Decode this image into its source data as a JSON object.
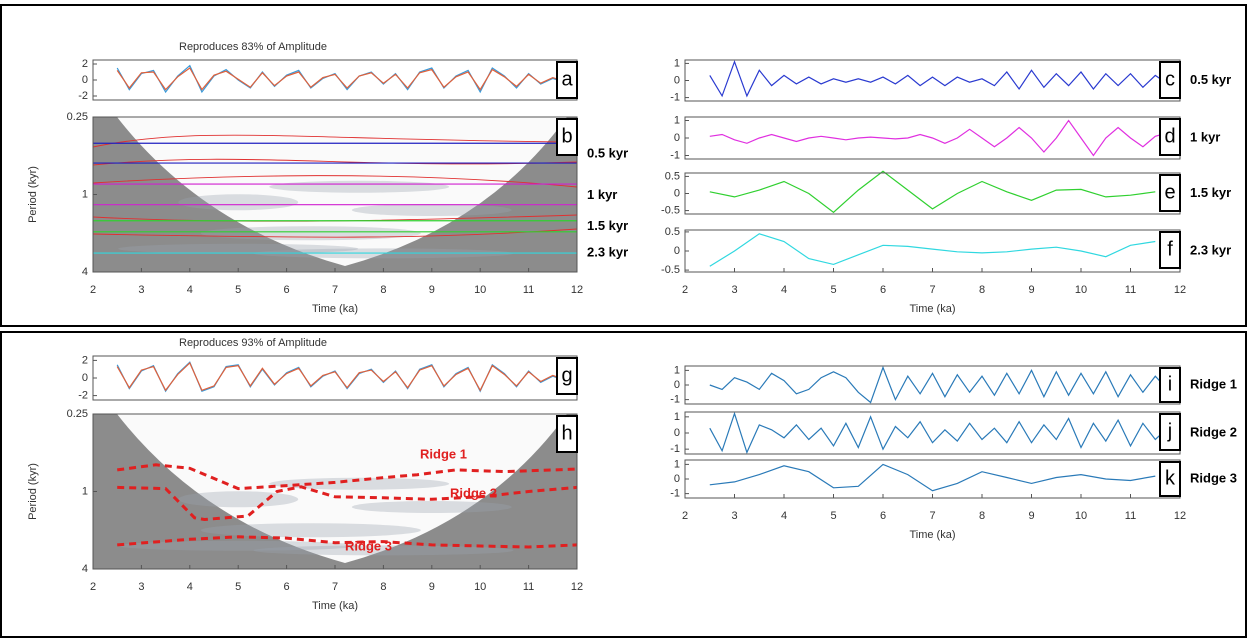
{
  "chart_data": [
    {
      "type": "line",
      "title": "Reproduces 83% of Amplitude",
      "panel_label": "a",
      "xlim": [
        2,
        12
      ],
      "ylim": [
        -2.5,
        2.5
      ],
      "yticks": [
        2,
        0,
        -2
      ],
      "x": [
        2.5,
        2.75,
        3,
        3.25,
        3.5,
        3.75,
        4,
        4.25,
        4.5,
        4.75,
        5,
        5.25,
        5.5,
        5.75,
        6,
        6.25,
        6.5,
        6.75,
        7,
        7.25,
        7.5,
        7.75,
        8,
        8.25,
        8.5,
        8.75,
        9,
        9.25,
        9.5,
        9.75,
        10,
        10.25,
        10.5,
        10.75,
        11,
        11.25,
        11.5,
        11.75
      ],
      "series": [
        {
          "color": "#3a9ad9",
          "values": [
            1.5,
            -1.2,
            0.8,
            1.2,
            -1.5,
            0.5,
            1.8,
            -1.5,
            0.5,
            1.3,
            0,
            -1.0,
            1.0,
            -0.8,
            0.6,
            1.2,
            -1.0,
            0.2,
            0.8,
            -1.2,
            0.5,
            1.0,
            -0.5,
            0.8,
            -1.2,
            1.0,
            1.5,
            -1.0,
            0.5,
            1.2,
            -1.5,
            1.5,
            0.5,
            -1.0,
            0.8,
            -0.5,
            0.2,
            -0.3
          ]
        },
        {
          "color": "#e0603a",
          "values": [
            1.2,
            -1.0,
            0.9,
            1.0,
            -1.2,
            0.4,
            1.5,
            -1.2,
            0.6,
            1.1,
            0.1,
            -0.9,
            0.9,
            -0.7,
            0.5,
            1.0,
            -0.9,
            0.3,
            0.7,
            -1.0,
            0.5,
            0.9,
            -0.4,
            0.7,
            -1.0,
            0.9,
            1.3,
            -0.9,
            0.4,
            1.0,
            -1.2,
            1.3,
            0.4,
            -0.8,
            0.7,
            -0.4,
            0.3,
            -0.2
          ]
        }
      ]
    },
    {
      "type": "wavelet",
      "panel_label": "b",
      "y_label": "Period (kyr)",
      "x_label": "Time (ka)",
      "xlim": [
        2,
        12
      ],
      "xticks": [
        2,
        3,
        4,
        5,
        6,
        7,
        8,
        9,
        10,
        11,
        12
      ],
      "ylim": [
        0.25,
        4
      ],
      "log_y": true,
      "y_reversed": true,
      "yticks": [
        0.25,
        1,
        4
      ],
      "hlines": [
        {
          "name": "0.5 kyr",
          "color": "#2020c0",
          "values": [
            0.4,
            0.57
          ]
        },
        {
          "name": "1 kyr",
          "color": "#d020d0",
          "values": [
            0.83,
            1.2
          ]
        },
        {
          "name": "1.5 kyr",
          "color": "#30d030",
          "values": [
            1.6,
            1.95
          ]
        },
        {
          "name": "2.3 kyr",
          "color": "#30d8e0",
          "values": [
            2.85
          ]
        }
      ]
    },
    {
      "type": "line",
      "panel_label": "c",
      "side_label": "0.5 kyr",
      "xlim": [
        2,
        12
      ],
      "ylim": [
        -1.2,
        1.2
      ],
      "yticks": [
        1,
        0,
        -1
      ],
      "x": [
        2.5,
        2.75,
        3,
        3.25,
        3.5,
        3.75,
        4,
        4.25,
        4.5,
        4.75,
        5,
        5.25,
        5.5,
        5.75,
        6,
        6.25,
        6.5,
        6.75,
        7,
        7.25,
        7.5,
        7.75,
        8,
        8.25,
        8.5,
        8.75,
        9,
        9.25,
        9.5,
        9.75,
        10,
        10.25,
        10.5,
        10.75,
        11,
        11.25,
        11.5,
        11.75
      ],
      "series": [
        {
          "color": "#2a3ad0",
          "values": [
            0.3,
            -0.9,
            1.1,
            -0.9,
            0.6,
            -0.3,
            0.3,
            -0.2,
            0.2,
            -0.2,
            0.1,
            -0.1,
            0.1,
            -0.1,
            0.2,
            -0.2,
            0.3,
            -0.3,
            0.2,
            -0.3,
            0.2,
            -0.1,
            0.1,
            -0.3,
            0.5,
            -0.5,
            0.6,
            -0.4,
            0.4,
            -0.3,
            0.5,
            -0.5,
            0.4,
            -0.3,
            0.4,
            -0.4,
            0.3,
            -0.2
          ]
        }
      ]
    },
    {
      "type": "line",
      "panel_label": "d",
      "side_label": "1 kyr",
      "xlim": [
        2,
        12
      ],
      "ylim": [
        -1.2,
        1.2
      ],
      "yticks": [
        1,
        0,
        -1
      ],
      "x": [
        2.5,
        2.75,
        3,
        3.25,
        3.5,
        3.75,
        4,
        4.25,
        4.5,
        4.75,
        5,
        5.25,
        5.5,
        5.75,
        6,
        6.25,
        6.5,
        6.75,
        7,
        7.25,
        7.5,
        7.75,
        8,
        8.25,
        8.5,
        8.75,
        9,
        9.25,
        9.5,
        9.75,
        10,
        10.25,
        10.5,
        10.75,
        11,
        11.25,
        11.5,
        11.75
      ],
      "series": [
        {
          "color": "#e030e0",
          "values": [
            0.1,
            0.2,
            -0.1,
            -0.3,
            0,
            0.2,
            0,
            -0.2,
            0,
            0.1,
            0,
            -0.1,
            0,
            0.05,
            0,
            -0.05,
            0,
            0.2,
            0,
            -0.3,
            0,
            0.5,
            0,
            -0.5,
            0,
            0.6,
            0,
            -0.8,
            0,
            1.0,
            0,
            -1.0,
            0,
            0.6,
            0,
            -0.5,
            0.1,
            0.3
          ]
        }
      ]
    },
    {
      "type": "line",
      "panel_label": "e",
      "side_label": "1.5 kyr",
      "xlim": [
        2,
        12
      ],
      "ylim": [
        -0.6,
        0.6
      ],
      "yticks": [
        0.5,
        0,
        -0.5
      ],
      "x": [
        2.5,
        3,
        3.5,
        4,
        4.5,
        5,
        5.5,
        6,
        6.5,
        7,
        7.5,
        8,
        8.5,
        9,
        9.5,
        10,
        10.5,
        11,
        11.5
      ],
      "series": [
        {
          "color": "#30d030",
          "values": [
            0.05,
            -0.1,
            0.1,
            0.35,
            0,
            -0.55,
            0.1,
            0.65,
            0.1,
            -0.45,
            0,
            0.35,
            0.05,
            -0.2,
            0.1,
            0.12,
            -0.1,
            -0.05,
            0.05
          ]
        }
      ]
    },
    {
      "type": "line",
      "panel_label": "f",
      "side_label": "2.3 kyr",
      "x_label": "Time (ka)",
      "xlim": [
        2,
        12
      ],
      "xticks": [
        2,
        3,
        4,
        5,
        6,
        7,
        8,
        9,
        10,
        11,
        12
      ],
      "ylim": [
        -0.55,
        0.55
      ],
      "yticks": [
        0.5,
        0,
        -0.5
      ],
      "x": [
        2.5,
        3,
        3.5,
        4,
        4.5,
        5,
        5.5,
        6,
        6.5,
        7,
        7.5,
        8,
        8.5,
        9,
        9.5,
        10,
        10.5,
        11,
        11.5
      ],
      "series": [
        {
          "color": "#30d8e0",
          "values": [
            -0.4,
            0,
            0.45,
            0.25,
            -0.2,
            -0.35,
            -0.1,
            0.15,
            0.12,
            0.05,
            -0.02,
            -0.05,
            -0.02,
            0.05,
            0.1,
            0,
            -0.15,
            0.15,
            0.25
          ]
        }
      ]
    },
    {
      "type": "line",
      "title": "Reproduces 93% of Amplitude",
      "panel_label": "g",
      "xlim": [
        2,
        12
      ],
      "ylim": [
        -2.5,
        2.5
      ],
      "yticks": [
        2,
        0,
        -2
      ],
      "x": [
        2.5,
        2.75,
        3,
        3.25,
        3.5,
        3.75,
        4,
        4.25,
        4.5,
        4.75,
        5,
        5.25,
        5.5,
        5.75,
        6,
        6.25,
        6.5,
        6.75,
        7,
        7.25,
        7.5,
        7.75,
        8,
        8.25,
        8.5,
        8.75,
        9,
        9.25,
        9.5,
        9.75,
        10,
        10.25,
        10.5,
        10.75,
        11,
        11.25,
        11.5,
        11.75
      ],
      "series": [
        {
          "color": "#3a9ad9",
          "values": [
            1.5,
            -1.2,
            0.8,
            1.4,
            -1.5,
            0.5,
            1.8,
            -1.5,
            -1.0,
            1.3,
            1.5,
            -1.0,
            1.0,
            -0.8,
            0.6,
            1.2,
            -1.0,
            0.2,
            0.8,
            -1.2,
            0.5,
            1.0,
            -0.5,
            0.8,
            -1.2,
            1.0,
            1.5,
            -1.0,
            0.5,
            1.2,
            -1.5,
            1.5,
            0.5,
            -1.0,
            0.8,
            -0.5,
            0.2,
            -0.3
          ]
        },
        {
          "color": "#e0603a",
          "values": [
            1.3,
            -1.1,
            0.9,
            1.3,
            -1.4,
            0.4,
            1.7,
            -1.4,
            -0.9,
            1.2,
            1.4,
            -0.9,
            1.1,
            -0.7,
            0.5,
            1.1,
            -0.9,
            0.3,
            0.7,
            -1.1,
            0.6,
            0.9,
            -0.4,
            0.7,
            -1.1,
            0.9,
            1.4,
            -0.9,
            0.4,
            1.1,
            -1.4,
            1.4,
            0.4,
            -0.9,
            0.7,
            -0.4,
            0.3,
            -0.2
          ]
        }
      ]
    },
    {
      "type": "wavelet",
      "panel_label": "h",
      "y_label": "Period (kyr)",
      "x_label": "Time (ka)",
      "xlim": [
        2,
        12
      ],
      "xticks": [
        2,
        3,
        4,
        5,
        6,
        7,
        8,
        9,
        10,
        11,
        12
      ],
      "ylim": [
        0.25,
        4
      ],
      "log_y": true,
      "y_reversed": true,
      "yticks": [
        0.25,
        1,
        4
      ],
      "ridges": [
        {
          "name": "Ridge 1",
          "color": "#e02020",
          "x": [
            2.5,
            3.3,
            4,
            5,
            6,
            7,
            8,
            8.7,
            9.5,
            10.5,
            12
          ],
          "values": [
            0.68,
            0.62,
            0.66,
            0.95,
            0.9,
            0.85,
            0.78,
            0.74,
            0.68,
            0.7,
            0.67
          ]
        },
        {
          "name": "Ridge 2",
          "color": "#e02020",
          "x": [
            2.5,
            3.5,
            4.1,
            4.3,
            5.2,
            5.8,
            6.3,
            7,
            8,
            9,
            10,
            11,
            12
          ],
          "values": [
            0.93,
            0.95,
            1.6,
            1.65,
            1.55,
            1.0,
            0.92,
            1.1,
            1.12,
            1.15,
            1.1,
            1.0,
            0.93
          ]
        },
        {
          "name": "Ridge 3",
          "color": "#e02020",
          "x": [
            2.5,
            4,
            5,
            6,
            7,
            8,
            9,
            10,
            11,
            12
          ],
          "values": [
            2.6,
            2.35,
            2.25,
            2.3,
            2.5,
            2.45,
            2.6,
            2.65,
            2.7,
            2.6
          ]
        }
      ]
    },
    {
      "type": "line",
      "panel_label": "i",
      "side_label": "Ridge 1",
      "xlim": [
        2,
        12
      ],
      "ylim": [
        -1.3,
        1.3
      ],
      "yticks": [
        1,
        0,
        -1
      ],
      "x": [
        2.5,
        2.75,
        3,
        3.25,
        3.5,
        3.75,
        4,
        4.25,
        4.5,
        4.75,
        5,
        5.25,
        5.5,
        5.75,
        6,
        6.25,
        6.5,
        6.75,
        7,
        7.25,
        7.5,
        7.75,
        8,
        8.25,
        8.5,
        8.75,
        9,
        9.25,
        9.5,
        9.75,
        10,
        10.25,
        10.5,
        10.75,
        11,
        11.25,
        11.5,
        11.75
      ],
      "series": [
        {
          "color": "#2a7ab8",
          "values": [
            0,
            -0.3,
            0.5,
            0.2,
            -0.3,
            0.8,
            0.3,
            -0.6,
            -0.3,
            0.5,
            0.9,
            0.5,
            -0.5,
            -1.2,
            1.2,
            -1.0,
            0.6,
            -0.6,
            0.8,
            -0.8,
            0.7,
            -0.5,
            0.6,
            -0.7,
            0.8,
            -0.6,
            1.0,
            -0.8,
            0.9,
            -0.7,
            0.8,
            -0.6,
            0.9,
            -0.8,
            0.7,
            -0.5,
            0.6,
            -0.3
          ]
        }
      ]
    },
    {
      "type": "line",
      "panel_label": "j",
      "side_label": "Ridge 2",
      "xlim": [
        2,
        12
      ],
      "ylim": [
        -1.3,
        1.3
      ],
      "yticks": [
        1,
        0,
        -1
      ],
      "x": [
        2.5,
        2.75,
        3,
        3.25,
        3.5,
        3.75,
        4,
        4.25,
        4.5,
        4.75,
        5,
        5.25,
        5.5,
        5.75,
        6,
        6.25,
        6.5,
        6.75,
        7,
        7.25,
        7.5,
        7.75,
        8,
        8.25,
        8.5,
        8.75,
        9,
        9.25,
        9.5,
        9.75,
        10,
        10.25,
        10.5,
        10.75,
        11,
        11.25,
        11.5,
        11.75
      ],
      "series": [
        {
          "color": "#2a7ab8",
          "values": [
            0.3,
            -1.1,
            1.2,
            -1.2,
            0.5,
            0.2,
            -0.3,
            0.5,
            -0.4,
            0.3,
            -0.8,
            0.6,
            -0.9,
            1.0,
            -1.0,
            0.4,
            -0.3,
            0.7,
            -0.6,
            0.2,
            -0.5,
            0.6,
            -0.4,
            0.3,
            -0.6,
            0.7,
            -0.6,
            0.5,
            -0.4,
            0.9,
            -0.9,
            0.6,
            -0.5,
            0.8,
            -0.8,
            0.6,
            -0.4,
            0.3
          ]
        }
      ]
    },
    {
      "type": "line",
      "panel_label": "k",
      "side_label": "Ridge 3",
      "x_label": "Time (ka)",
      "xlim": [
        2,
        12
      ],
      "xticks": [
        2,
        3,
        4,
        5,
        6,
        7,
        8,
        9,
        10,
        11,
        12
      ],
      "ylim": [
        -1.3,
        1.3
      ],
      "yticks": [
        1,
        0,
        -1
      ],
      "x": [
        2.5,
        3,
        3.5,
        4,
        4.5,
        5,
        5.5,
        6,
        6.5,
        7,
        7.5,
        8,
        8.5,
        9,
        9.5,
        10,
        10.5,
        11,
        11.5
      ],
      "series": [
        {
          "color": "#2a7ab8",
          "values": [
            -0.4,
            -0.2,
            0.3,
            0.9,
            0.5,
            -0.6,
            -0.5,
            1.0,
            0.3,
            -0.8,
            -0.3,
            0.5,
            0.1,
            -0.3,
            0.1,
            0.3,
            0,
            -0.1,
            0.2
          ]
        }
      ]
    }
  ]
}
